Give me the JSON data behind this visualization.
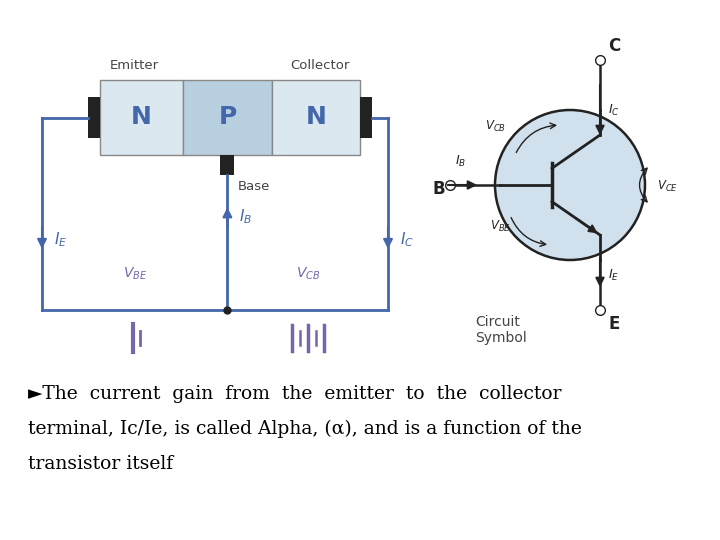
{
  "bg_color": "#ffffff",
  "text_line1": "►The  current  gain  from  the  emitter  to  the  collector",
  "text_line2": "terminal, Ic/Ie, is called Alpha, (α), and is a function of the",
  "text_line3": "transistor itself",
  "text_color": "#000000",
  "text_fontsize": 13.5,
  "fig_width": 7.2,
  "fig_height": 5.4,
  "npn_n1_color": "#dce8f0",
  "npn_p_color": "#b8cfe0",
  "npn_n2_color": "#dce8f0",
  "wire_color": "#4466aa",
  "label_color": "#4466aa",
  "volt_color": "#7766aa",
  "black": "#222222",
  "gray_label": "#444444",
  "circ_fill": "#d0e0ec"
}
